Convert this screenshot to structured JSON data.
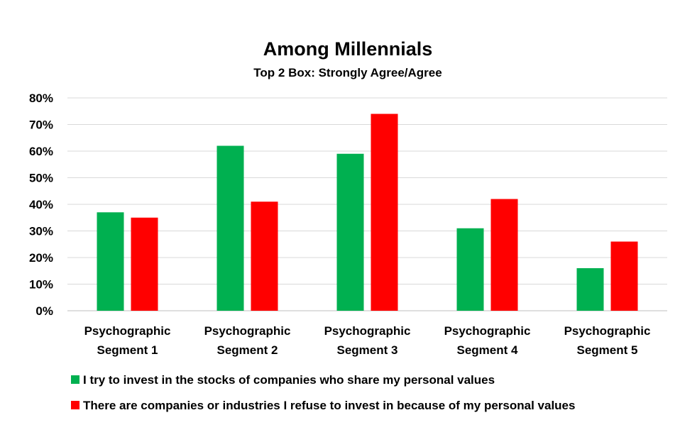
{
  "chart_data": {
    "type": "bar",
    "title": "Among Millennials",
    "subtitle": "Top 2 Box: Strongly Agree/Agree",
    "categories": [
      [
        "Psychographic",
        "Segment 1"
      ],
      [
        "Psychographic",
        "Segment 2"
      ],
      [
        "Psychographic",
        "Segment 3"
      ],
      [
        "Psychographic",
        "Segment 4"
      ],
      [
        "Psychographic",
        "Segment 5"
      ]
    ],
    "series": [
      {
        "name": "I try to invest in the stocks of companies who share my personal values",
        "color": "#00b050",
        "values": [
          37,
          62,
          59,
          31,
          16
        ]
      },
      {
        "name": "There are companies or industries I refuse to invest in because of my personal values",
        "color": "#ff0000",
        "values": [
          35,
          41,
          74,
          42,
          26
        ]
      }
    ],
    "ylim": [
      0,
      80
    ],
    "yticks": [
      "0%",
      "10%",
      "20%",
      "30%",
      "40%",
      "50%",
      "60%",
      "70%",
      "80%"
    ],
    "grid": true,
    "legend_position": "bottom"
  }
}
